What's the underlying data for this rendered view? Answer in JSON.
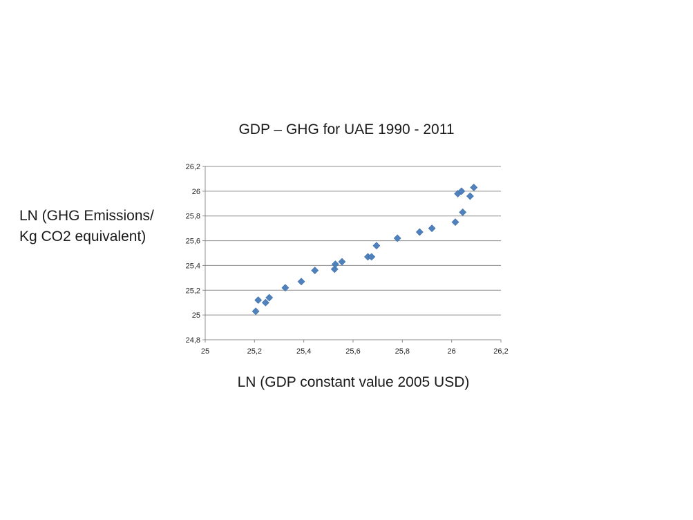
{
  "chart_data": {
    "type": "scatter",
    "title": "GDP – GHG for UAE 1990 - 2011",
    "xlabel": "LN (GDP constant value 2005 USD)",
    "ylabel_lines": [
      "LN (GHG Emissions/",
      "Kg CO2 equivalent)"
    ],
    "xlim": [
      25,
      26.2
    ],
    "ylim": [
      24.8,
      26.2
    ],
    "x_ticks": [
      "25",
      "25,2",
      "25,4",
      "25,6",
      "25,8",
      "26",
      "26,2"
    ],
    "y_ticks": [
      "24,8",
      "25",
      "25,2",
      "25,4",
      "25,6",
      "25,8",
      "26",
      "26,2"
    ],
    "grid": "horizontal",
    "marker": "diamond",
    "color": "#4f81bd",
    "points": [
      {
        "x": 25.205,
        "y": 25.03
      },
      {
        "x": 25.215,
        "y": 25.12
      },
      {
        "x": 25.245,
        "y": 25.1
      },
      {
        "x": 25.26,
        "y": 25.14
      },
      {
        "x": 25.325,
        "y": 25.22
      },
      {
        "x": 25.39,
        "y": 25.27
      },
      {
        "x": 25.445,
        "y": 25.36
      },
      {
        "x": 25.525,
        "y": 25.37
      },
      {
        "x": 25.528,
        "y": 25.41
      },
      {
        "x": 25.555,
        "y": 25.43
      },
      {
        "x": 25.66,
        "y": 25.47
      },
      {
        "x": 25.675,
        "y": 25.47
      },
      {
        "x": 25.695,
        "y": 25.56
      },
      {
        "x": 25.78,
        "y": 25.62
      },
      {
        "x": 25.87,
        "y": 25.67
      },
      {
        "x": 25.92,
        "y": 25.7
      },
      {
        "x": 26.015,
        "y": 25.75
      },
      {
        "x": 26.045,
        "y": 25.83
      },
      {
        "x": 26.025,
        "y": 25.98
      },
      {
        "x": 26.04,
        "y": 26.0
      },
      {
        "x": 26.075,
        "y": 25.96
      },
      {
        "x": 26.09,
        "y": 26.03
      }
    ]
  }
}
